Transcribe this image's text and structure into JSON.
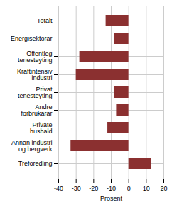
{
  "chart_data": {
    "type": "bar",
    "orientation": "horizontal",
    "categories": [
      "Totalt",
      "Energisektorar",
      "Offentleg\ntenesteyting",
      "Kraftintensiv\nindustri",
      "Privat\ntenesteyting",
      "Andre\nforbrukarar",
      "Private\nhushald",
      "Annan industri\nog bergverk",
      "Treforedling"
    ],
    "values": [
      -13,
      -8,
      -28,
      -30,
      -8,
      -7,
      -12,
      -33,
      13
    ],
    "color": "#8B3030",
    "xlabel": "Prosent",
    "xlim": [
      -40,
      20
    ],
    "xticks": [
      -40,
      -30,
      -20,
      -10,
      0,
      10,
      20
    ],
    "grid": true
  }
}
